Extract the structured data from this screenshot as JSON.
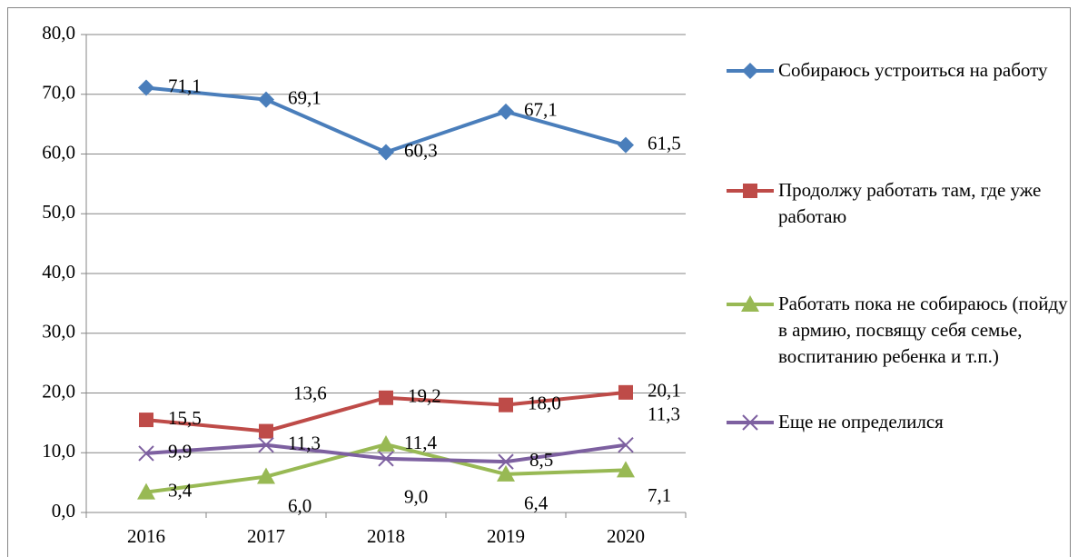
{
  "chart_data": {
    "type": "line",
    "categories": [
      "2016",
      "2017",
      "2018",
      "2019",
      "2020"
    ],
    "ylim": [
      0,
      80
    ],
    "yticks": [
      {
        "value": 0,
        "label": "0,0"
      },
      {
        "value": 10,
        "label": "10,0"
      },
      {
        "value": 20,
        "label": "20,0"
      },
      {
        "value": 30,
        "label": "30,0"
      },
      {
        "value": 40,
        "label": "40,0"
      },
      {
        "value": 50,
        "label": "50,0"
      },
      {
        "value": 60,
        "label": "60,0"
      },
      {
        "value": 70,
        "label": "70,0"
      },
      {
        "value": 80,
        "label": "80,0"
      }
    ],
    "grid": true,
    "legend": "right",
    "series": [
      {
        "name": "Собираюсь устроиться на работу",
        "color": "#4a7ebb",
        "marker": "diamond",
        "values": [
          71.1,
          69.1,
          60.3,
          67.1,
          61.5
        ],
        "value_labels": [
          "71,1",
          "69,1",
          "60,3",
          "67,1",
          "61,5"
        ]
      },
      {
        "name": "Продолжу работать там, где уже работаю",
        "color": "#be4b48",
        "marker": "square",
        "values": [
          15.5,
          13.6,
          19.2,
          18.0,
          20.1
        ],
        "value_labels": [
          "15,5",
          "13,6",
          "19,2",
          "18,0",
          "20,1"
        ]
      },
      {
        "name": "Работать пока не собираюсь (пойду в армию, посвящу себя семье, воспитанию ребенка и т.п.)",
        "color": "#98b954",
        "marker": "triangle",
        "values": [
          3.4,
          6.0,
          11.4,
          6.4,
          7.1
        ],
        "value_labels": [
          "3,4",
          "6,0",
          "11,4",
          "6,4",
          "7,1"
        ]
      },
      {
        "name": "Еще не определился",
        "color": "#7d60a0",
        "marker": "x",
        "values": [
          9.9,
          11.3,
          9.0,
          8.5,
          11.3
        ],
        "value_labels": [
          "9,9",
          "11,3",
          "9,0",
          "8,5",
          "11,3"
        ]
      }
    ]
  }
}
